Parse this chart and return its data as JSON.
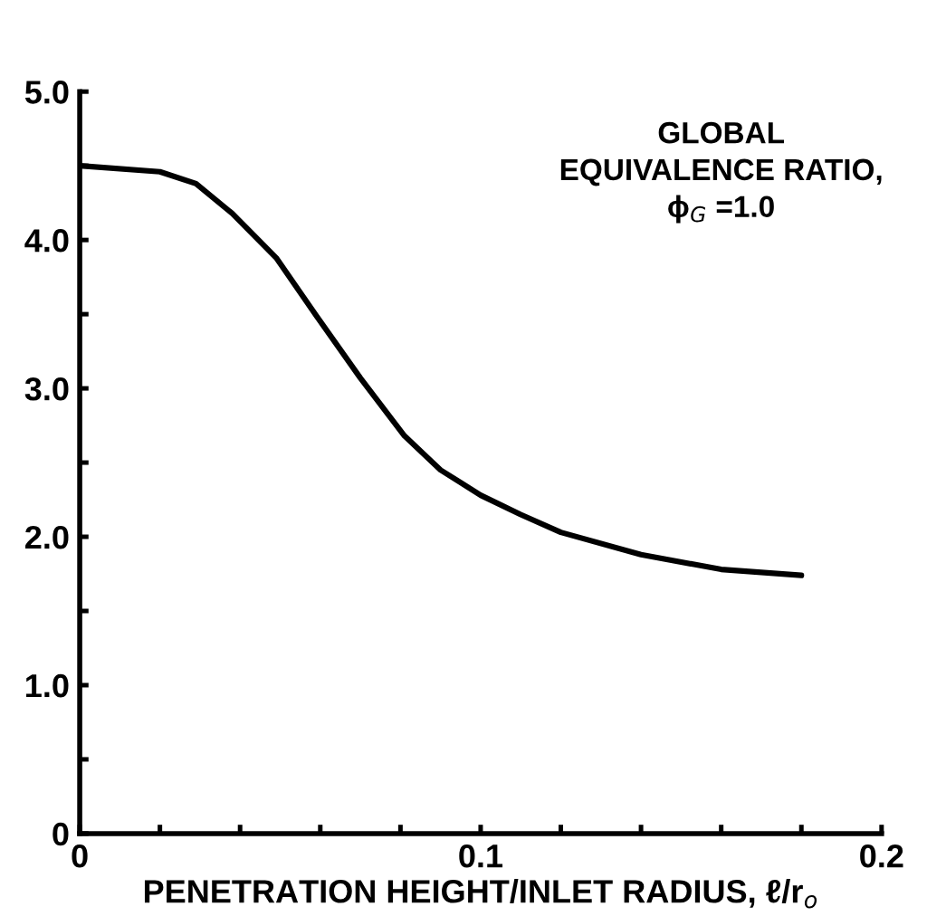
{
  "chart_data": {
    "type": "line",
    "xlabel": "PENETRATION HEIGHT/INLET RADIUS, ℓ/r$_{o}$",
    "annotations": [
      "GLOBAL\nEQUIVALENCE RATIO,\nϕ$_{G}$ =1.0"
    ],
    "series": [
      {
        "color": "#000000",
        "x": [
          0,
          0.02,
          0.029,
          0.038,
          0.049,
          0.059,
          0.07,
          0.081,
          0.09,
          0.1,
          0.11,
          0.12,
          0.14,
          0.16,
          0.18
        ],
        "values": [
          4.5,
          4.46,
          4.38,
          4.18,
          3.88,
          3.49,
          3.07,
          2.68,
          2.45,
          2.28,
          2.15,
          2.03,
          1.88,
          1.78,
          1.74
        ]
      }
    ],
    "xlim": [
      0,
      0.2
    ],
    "ylim": [
      0,
      5.0
    ],
    "xticks": [
      0,
      {
        "value": 0.02,
        "label": null
      },
      {
        "value": 0.04,
        "label": null
      },
      {
        "value": 0.06,
        "label": null
      },
      {
        "value": 0.08,
        "label": null
      },
      0.1,
      {
        "value": 0.12,
        "label": null
      },
      {
        "value": 0.14,
        "label": null
      },
      {
        "value": 0.16,
        "label": null
      },
      {
        "value": 0.18,
        "label": null
      },
      0.2
    ],
    "yticks": [
      0,
      {
        "value": 0.5,
        "label": null
      },
      {
        "value": 1.0,
        "label": "1.0"
      },
      {
        "value": 1.5,
        "label": null
      },
      {
        "value": 2.0,
        "label": "2.0"
      },
      {
        "value": 2.5,
        "label": null
      },
      {
        "value": 3.0,
        "label": "3.0"
      },
      {
        "value": 3.5,
        "label": null
      },
      {
        "value": 4.0,
        "label": "4.0"
      },
      {
        "value": 4.5,
        "label": null
      },
      {
        "value": 5.0,
        "label": "5.0"
      }
    ],
    "marker": "none",
    "line_style": "solid"
  }
}
